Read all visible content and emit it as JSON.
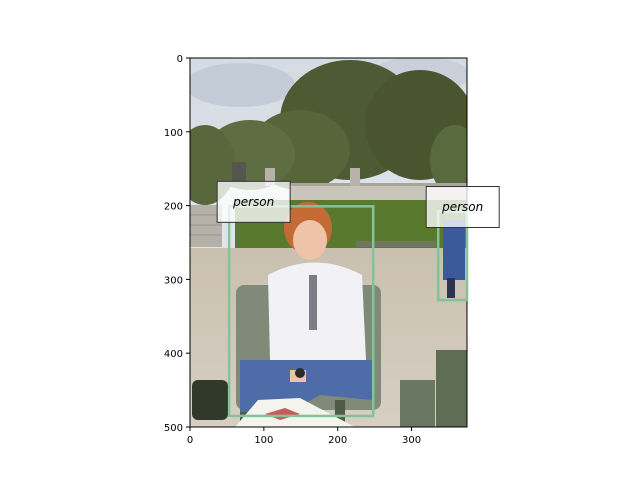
{
  "image": {
    "description_icon": "photo-park-person-seated",
    "x_range": [
      0,
      375
    ],
    "y_range": [
      0,
      500
    ]
  },
  "axes": {
    "x_ticks": [
      0,
      100,
      200,
      300
    ],
    "y_ticks": [
      0,
      100,
      200,
      300,
      400,
      500
    ]
  },
  "detections": [
    {
      "label": "person",
      "x0": 53,
      "y0": 201,
      "x1": 248,
      "y1": 485,
      "color": "#82c39a"
    },
    {
      "label": "person",
      "x0": 336,
      "y0": 208,
      "x1": 375,
      "y1": 328,
      "color": "#82c39a"
    }
  ]
}
